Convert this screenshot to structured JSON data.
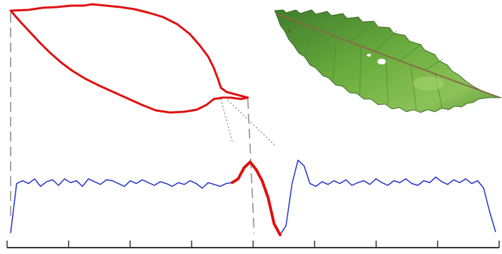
{
  "figure": {
    "contour_color": "#e01010",
    "signature_color": "#2233cc",
    "highlight_color": "#e01010",
    "guide_line_color": "#888888",
    "axis_color": "#333333",
    "leaf_colors": {
      "blade_light": "#7fbf4d",
      "blade_mid": "#5a9a37",
      "blade_dark": "#2f6a25",
      "midrib": "#8a6a4a"
    }
  },
  "chart_data": {
    "type": "line",
    "series": [
      {
        "values": [
          0.02,
          0.55,
          0.58,
          0.55,
          0.6,
          0.52,
          0.57,
          0.59,
          0.53,
          0.6,
          0.56,
          0.58,
          0.52,
          0.6,
          0.57,
          0.54,
          0.59,
          0.58,
          0.55,
          0.52,
          0.58,
          0.55,
          0.59,
          0.56,
          0.53,
          0.57,
          0.55,
          0.52,
          0.56,
          0.54,
          0.58,
          0.55,
          0.5,
          0.56,
          0.54,
          0.52,
          0.55,
          0.56,
          0.6,
          0.72,
          0.78,
          0.7,
          0.58,
          0.4,
          0.12,
          0.0,
          0.1,
          0.55,
          0.8,
          0.74,
          0.55,
          0.52,
          0.57,
          0.54,
          0.58,
          0.55,
          0.59,
          0.53,
          0.56,
          0.58,
          0.54,
          0.6,
          0.56,
          0.53,
          0.58,
          0.56,
          0.6,
          0.55,
          0.53,
          0.58,
          0.56,
          0.62,
          0.57,
          0.54,
          0.59,
          0.56,
          0.6,
          0.55,
          0.58,
          0.5,
          0.25,
          0.03
        ]
      }
    ],
    "ylim": [
      0,
      1
    ],
    "xticks_count": 9,
    "highlighted_segment": {
      "start_index": 37,
      "end_index": 45
    }
  }
}
